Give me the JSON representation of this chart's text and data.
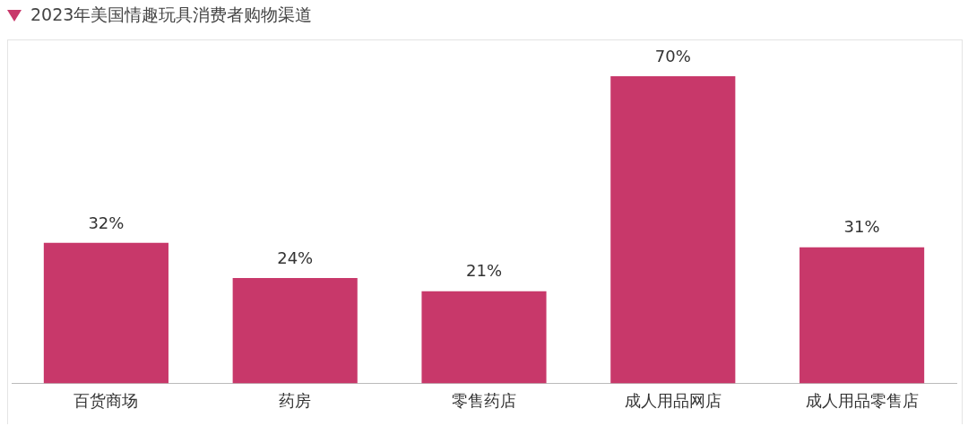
{
  "chart_data": {
    "type": "bar",
    "title": "2023年美国情趣玩具消费者购物渠道",
    "categories": [
      "百货商场",
      "药房",
      "零售药店",
      "成人用品网店",
      "成人用品零售店"
    ],
    "values": [
      32,
      24,
      21,
      70,
      31
    ],
    "color": "#c8386a",
    "value_labels": [
      "32%",
      "24%",
      "21%",
      "70%",
      "31%"
    ],
    "grid": false,
    "legend": false
  }
}
